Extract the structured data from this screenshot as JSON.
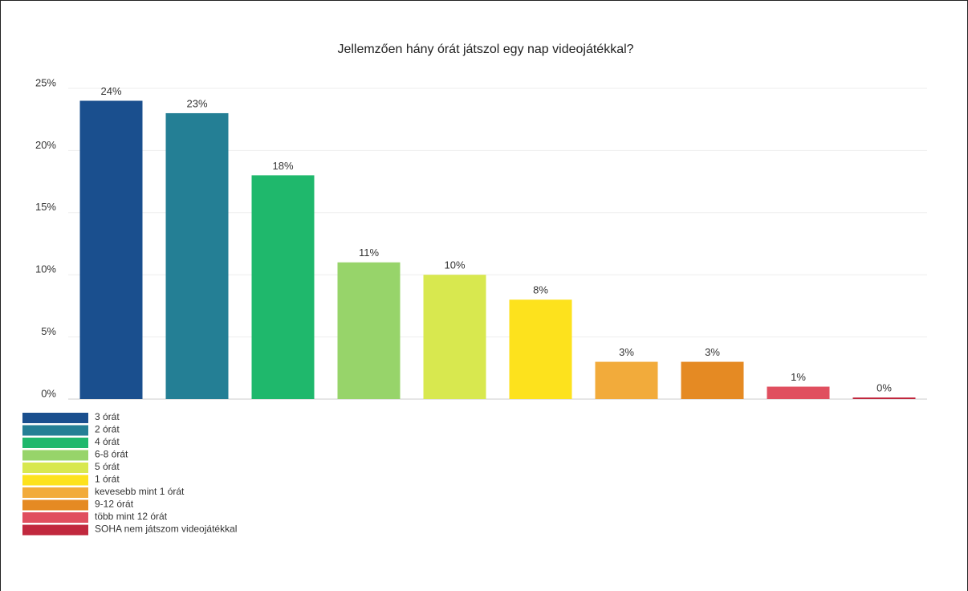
{
  "chart_data": {
    "type": "bar",
    "title": "Jellemzően hány órát játszol egy nap videojátékkal?",
    "categories": [
      "3 órát",
      "2 órát",
      "4 órát",
      "6-8 órát",
      "5 órát",
      "1 órát",
      "kevesebb mint 1 órát",
      "9-12 órát",
      "több mint 12 órát",
      "SOHA nem játszom videojátékkal"
    ],
    "values": [
      24,
      23,
      18,
      11,
      10,
      8,
      3,
      3,
      1,
      0
    ],
    "value_labels": [
      "24%",
      "23%",
      "18%",
      "11%",
      "10%",
      "8%",
      "3%",
      "3%",
      "1%",
      "0%"
    ],
    "colors": [
      "#1a4f8e",
      "#247f95",
      "#1fb86c",
      "#97d46a",
      "#d8e84f",
      "#fde21d",
      "#f2ab3b",
      "#e58a23",
      "#e04f5f",
      "#c1283e"
    ],
    "ylim": [
      0,
      25
    ],
    "yticks": [
      {
        "value": 0,
        "label": "0%"
      },
      {
        "value": 5,
        "label": "5%"
      },
      {
        "value": 10,
        "label": "10%"
      },
      {
        "value": 15,
        "label": "15%"
      },
      {
        "value": 20,
        "label": "20%"
      },
      {
        "value": 25,
        "label": "25%"
      }
    ],
    "grid": true,
    "legend": "bottom-left"
  }
}
